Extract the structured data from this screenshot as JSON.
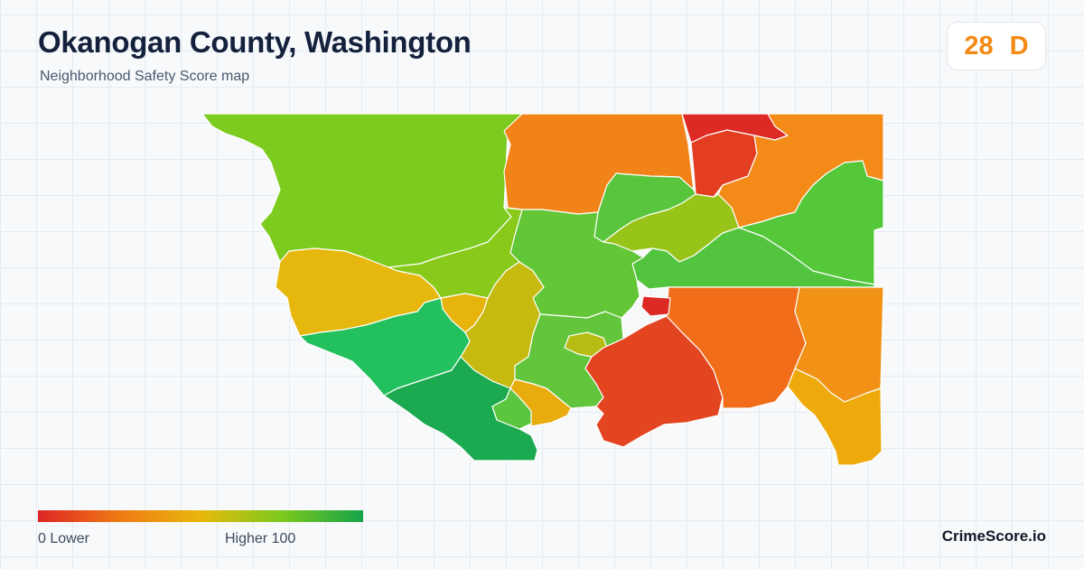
{
  "header": {
    "title": "Okanogan County, Washington",
    "subtitle": "Neighborhood Safety Score map"
  },
  "score_badge": {
    "score": "28",
    "grade": "D",
    "color": "#f28a14"
  },
  "legend": {
    "low_label": "0  Lower",
    "high_label": "Higher  100",
    "low_color": "#dc2626",
    "high_color": "#16a34a"
  },
  "brand": "CrimeScore.io",
  "map": {
    "border_color": "#ffffff",
    "regions": [
      {
        "name": "northwest",
        "fill": "#7ccb1e"
      },
      {
        "name": "north-central",
        "fill": "#f28318"
      },
      {
        "name": "north-top-red",
        "fill": "#dd2a24"
      },
      {
        "name": "north-red",
        "fill": "#e33d22"
      },
      {
        "name": "northeast-orange",
        "fill": "#f48a17"
      },
      {
        "name": "east-green",
        "fill": "#55c83a"
      },
      {
        "name": "central-green",
        "fill": "#62c637"
      },
      {
        "name": "central-yellowgreen",
        "fill": "#98c41a"
      },
      {
        "name": "central-north",
        "fill": "#58c53c"
      },
      {
        "name": "east-central-green",
        "fill": "#53c43e"
      },
      {
        "name": "central-lime",
        "fill": "#88c91a"
      },
      {
        "name": "west-yellow",
        "fill": "#e6b80e"
      },
      {
        "name": "center-yellow",
        "fill": "#e7b30d"
      },
      {
        "name": "center-olive",
        "fill": "#c6b90f"
      },
      {
        "name": "southwest-green",
        "fill": "#23c05e"
      },
      {
        "name": "southwest-darkgreen",
        "fill": "#1caa50"
      },
      {
        "name": "south-green",
        "fill": "#5cc540"
      },
      {
        "name": "south-central-green",
        "fill": "#63c53c"
      },
      {
        "name": "center-small-olive",
        "fill": "#b8bd14"
      },
      {
        "name": "south-yellow",
        "fill": "#e8ac0f"
      },
      {
        "name": "southeast-red",
        "fill": "#e34521"
      },
      {
        "name": "east-orange",
        "fill": "#f26d1a"
      },
      {
        "name": "far-east-orange",
        "fill": "#f19216"
      },
      {
        "name": "southeast-tail",
        "fill": "#eeaa0c"
      },
      {
        "name": "city-red",
        "fill": "#dd2a24"
      }
    ]
  }
}
